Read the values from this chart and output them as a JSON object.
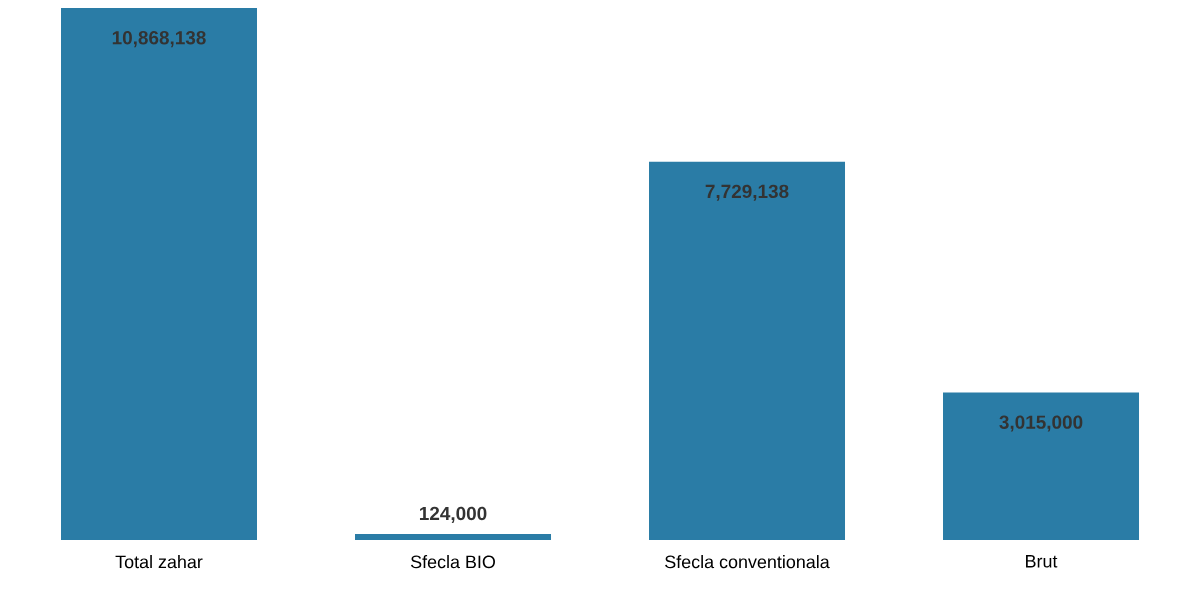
{
  "chart_data": {
    "type": "bar",
    "categories": [
      "Total zahar",
      "Sfecla BIO",
      "Sfecla conventionala",
      "Brut"
    ],
    "values": [
      10868138,
      124000,
      7729138,
      3015000
    ],
    "value_labels": [
      "10,868,138",
      "124,000",
      "7,729,138",
      "3,015,000"
    ],
    "color": "#2a7ca6"
  }
}
